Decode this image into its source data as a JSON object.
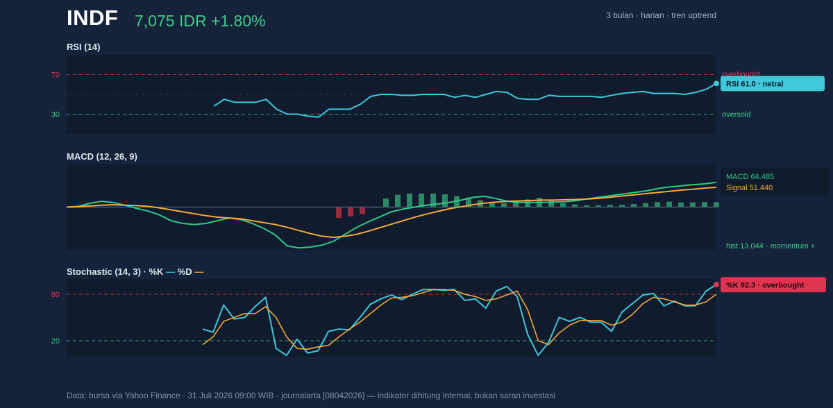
{
  "header": {
    "ticker": "INDF",
    "price_line": "7,075 IDR +1.80%",
    "meta": "3 bulan · harian · tren uptrend"
  },
  "colors": {
    "bg": "#15233a",
    "panel": "#101c2d",
    "up": "#3ec98a",
    "rsi_line": "#3ec8d9",
    "macd_line": "#2ec98a",
    "signal_line": "#f2a93b",
    "overbought": "#e0334f",
    "hist_pos": "#2a8a68",
    "hist_neg": "#9a2a40"
  },
  "footer": {
    "text": "Data: bursa via Yahoo Finance · 31 Juli 2026 09:00 WIB · journalarta [08042026] — indikator dihitung internal, bukan saran investasi"
  },
  "chart_data": [
    {
      "type": "line",
      "title": "RSI (14)",
      "ylim": [
        10,
        90
      ],
      "levels": [
        {
          "value": 70,
          "label": "overbought"
        },
        {
          "value": 30,
          "label": "oversold"
        }
      ],
      "series": [
        {
          "values": [
            38,
            45,
            42,
            42,
            42,
            45,
            35,
            30,
            30,
            28,
            27,
            35,
            35,
            35,
            40,
            48,
            50,
            50,
            49,
            49,
            50,
            50,
            50,
            47,
            49,
            47,
            50,
            53,
            52,
            46,
            45,
            45,
            49,
            48,
            48,
            48,
            48,
            47,
            49,
            51,
            52,
            53,
            51,
            51,
            51,
            50,
            52,
            55,
            61
          ]
        }
      ],
      "callout": "RSI 61.0 · netral"
    },
    {
      "type": "line",
      "title": "MACD (12, 26, 9)",
      "ylim": [
        -110,
        110
      ],
      "series": [
        {
          "name": "MACD",
          "values": [
            0,
            2,
            10,
            15,
            12,
            5,
            -3,
            -10,
            -20,
            -35,
            -42,
            -45,
            -42,
            -35,
            -28,
            -32,
            -42,
            -55,
            -72,
            -100,
            -105,
            -103,
            -98,
            -88,
            -70,
            -52,
            -38,
            -25,
            -12,
            -5,
            0,
            5,
            8,
            12,
            18,
            25,
            28,
            22,
            15,
            12,
            12,
            12,
            13,
            14,
            17,
            22,
            26,
            30,
            34,
            38,
            42,
            48,
            52,
            55,
            58,
            60,
            64
          ]
        },
        {
          "name": "Signal",
          "values": [
            0,
            1,
            3,
            5,
            6,
            5,
            4,
            2,
            -2,
            -7,
            -12,
            -17,
            -22,
            -26,
            -28,
            -30,
            -35,
            -40,
            -45,
            -52,
            -60,
            -68,
            -75,
            -78,
            -75,
            -70,
            -62,
            -53,
            -44,
            -35,
            -26,
            -18,
            -11,
            -4,
            1,
            6,
            10,
            13,
            15,
            16,
            17,
            18,
            18,
            19,
            20,
            21,
            23,
            26,
            29,
            32,
            35,
            38,
            41,
            44,
            46,
            49,
            51
          ]
        }
      ],
      "histogram": [
        -28,
        -24,
        -18,
        0,
        22,
        32,
        35,
        35,
        35,
        33,
        28,
        25,
        18,
        14,
        10,
        14,
        20,
        24,
        18,
        10,
        7,
        5,
        5,
        6,
        6,
        8,
        10,
        13,
        14,
        12,
        12,
        13,
        13
      ],
      "macd_value": "MACD 64.485",
      "signal_value": "Signal 51.440",
      "hist_value": "hist 13.044 · momentum +"
    },
    {
      "type": "line",
      "title": "Stochastic (14, 3)",
      "ylim": [
        0,
        100
      ],
      "legend": [
        "%K",
        "%D"
      ],
      "levels": [
        {
          "value": 80
        },
        {
          "value": 20
        }
      ],
      "series": [
        {
          "name": "%K",
          "values": [
            35,
            31,
            66,
            48,
            50,
            64,
            76,
            10,
            1,
            22,
            4,
            7,
            32,
            35,
            34,
            50,
            67,
            74,
            79,
            73,
            80,
            86,
            86,
            85,
            86,
            72,
            74,
            62,
            84,
            90,
            77,
            28,
            1,
            18,
            50,
            45,
            50,
            44,
            44,
            32,
            57,
            68,
            79,
            81,
            65,
            71,
            65,
            65,
            84,
            92.3
          ]
        },
        {
          "name": "%D",
          "values": [
            15,
            25,
            45,
            50,
            55,
            55,
            64,
            50,
            25,
            10,
            9,
            12,
            14,
            25,
            35,
            44,
            55,
            66,
            75,
            76,
            78,
            82,
            86,
            86,
            85,
            80,
            77,
            72,
            74,
            79,
            84,
            60,
            20,
            15,
            30,
            40,
            46,
            46,
            46,
            40,
            44,
            54,
            68,
            76,
            74,
            70,
            66,
            66,
            70,
            80
          ]
        }
      ],
      "callout": "%K 92.3 · overbought"
    }
  ]
}
